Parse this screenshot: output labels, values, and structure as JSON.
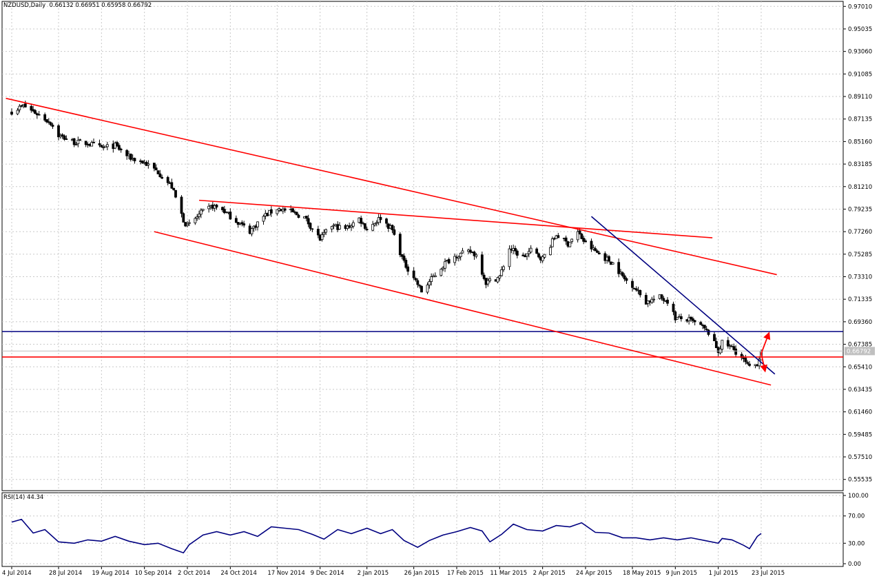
{
  "header": {
    "symbol_line": "NZDUSD,Daily  0.66132 0.66951 0.65958 0.66792",
    "rsi_line": "RSI(14) 44.34"
  },
  "colors": {
    "background": "#ffffff",
    "grid": "#c8c8c8",
    "candle": "#000000",
    "red_lines": "#ff0000",
    "blue_lines": "#000080",
    "rsi_line": "#000080",
    "price_tag": "#c0c0c0"
  },
  "chart_data": [
    {
      "type": "candlestick",
      "timeframe": "Daily",
      "grid": true,
      "ylim": [
        0.5455,
        0.9745
      ],
      "y_tick_labels": [
        "0.97010",
        "0.95035",
        "0.93060",
        "0.91085",
        "0.89110",
        "0.87135",
        "0.85160",
        "0.83185",
        "0.81210",
        "0.79235",
        "0.77260",
        "0.75285",
        "0.73310",
        "0.71335",
        "0.69360",
        "0.67385",
        "0.65410",
        "0.63435",
        "0.61460",
        "0.59485",
        "0.57510",
        "0.55535"
      ],
      "x_tick_labels": [
        "4 Jul 2014",
        "28 Jul 2014",
        "19 Aug 2014",
        "10 Sep 2014",
        "2 Oct 2014",
        "24 Oct 2014",
        "17 Nov 2014",
        "9 Dec 2014",
        "2 Jan 2015",
        "26 Jan 2015",
        "17 Feb 2015",
        "11 Mar 2015",
        "2 Apr 2015",
        "24 Apr 2015",
        "18 May 2015",
        "9 Jun 2015",
        "1 Jul 2015",
        "23 Jul 2015"
      ],
      "last_price_tag": "0.66792",
      "last_close": 0.66792,
      "close_path": [
        {
          "date": "2014-07-04",
          "close": 0.878
        },
        {
          "date": "2014-07-10",
          "close": 0.883
        },
        {
          "date": "2014-07-17",
          "close": 0.876
        },
        {
          "date": "2014-07-24",
          "close": 0.868
        },
        {
          "date": "2014-07-28",
          "close": 0.857
        },
        {
          "date": "2014-08-05",
          "close": 0.851
        },
        {
          "date": "2014-08-12",
          "close": 0.85
        },
        {
          "date": "2014-08-19",
          "close": 0.846
        },
        {
          "date": "2014-08-26",
          "close": 0.848
        },
        {
          "date": "2014-09-02",
          "close": 0.838
        },
        {
          "date": "2014-09-10",
          "close": 0.833
        },
        {
          "date": "2014-09-17",
          "close": 0.825
        },
        {
          "date": "2014-09-24",
          "close": 0.812
        },
        {
          "date": "2014-09-30",
          "close": 0.783
        },
        {
          "date": "2014-10-02",
          "close": 0.777
        },
        {
          "date": "2014-10-09",
          "close": 0.789
        },
        {
          "date": "2014-10-15",
          "close": 0.795
        },
        {
          "date": "2014-10-20",
          "close": 0.792
        },
        {
          "date": "2014-10-24",
          "close": 0.786
        },
        {
          "date": "2014-11-03",
          "close": 0.773
        },
        {
          "date": "2014-11-10",
          "close": 0.786
        },
        {
          "date": "2014-11-17",
          "close": 0.793
        },
        {
          "date": "2014-11-24",
          "close": 0.79
        },
        {
          "date": "2014-12-01",
          "close": 0.785
        },
        {
          "date": "2014-12-09",
          "close": 0.766
        },
        {
          "date": "2014-12-15",
          "close": 0.778
        },
        {
          "date": "2014-12-22",
          "close": 0.775
        },
        {
          "date": "2014-12-29",
          "close": 0.784
        },
        {
          "date": "2015-01-02",
          "close": 0.775
        },
        {
          "date": "2015-01-09",
          "close": 0.785
        },
        {
          "date": "2015-01-15",
          "close": 0.774
        },
        {
          "date": "2015-01-21",
          "close": 0.745
        },
        {
          "date": "2015-01-26",
          "close": 0.733
        },
        {
          "date": "2015-01-30",
          "close": 0.72
        },
        {
          "date": "2015-02-05",
          "close": 0.733
        },
        {
          "date": "2015-02-11",
          "close": 0.745
        },
        {
          "date": "2015-02-17",
          "close": 0.752
        },
        {
          "date": "2015-02-24",
          "close": 0.755
        },
        {
          "date": "2015-02-27",
          "close": 0.752
        },
        {
          "date": "2015-03-04",
          "close": 0.728
        },
        {
          "date": "2015-03-11",
          "close": 0.733
        },
        {
          "date": "2015-03-16",
          "close": 0.758
        },
        {
          "date": "2015-03-23",
          "close": 0.75
        },
        {
          "date": "2015-03-27",
          "close": 0.756
        },
        {
          "date": "2015-04-02",
          "close": 0.749
        },
        {
          "date": "2015-04-09",
          "close": 0.77
        },
        {
          "date": "2015-04-15",
          "close": 0.762
        },
        {
          "date": "2015-04-20",
          "close": 0.772
        },
        {
          "date": "2015-04-24",
          "close": 0.762
        },
        {
          "date": "2015-05-01",
          "close": 0.753
        },
        {
          "date": "2015-05-08",
          "close": 0.745
        },
        {
          "date": "2015-05-14",
          "close": 0.731
        },
        {
          "date": "2015-05-18",
          "close": 0.726
        },
        {
          "date": "2015-05-25",
          "close": 0.711
        },
        {
          "date": "2015-06-01",
          "close": 0.715
        },
        {
          "date": "2015-06-05",
          "close": 0.712
        },
        {
          "date": "2015-06-09",
          "close": 0.697
        },
        {
          "date": "2015-06-16",
          "close": 0.695
        },
        {
          "date": "2015-06-22",
          "close": 0.69
        },
        {
          "date": "2015-06-26",
          "close": 0.684
        },
        {
          "date": "2015-07-01",
          "close": 0.668
        },
        {
          "date": "2015-07-03",
          "close": 0.675
        },
        {
          "date": "2015-07-08",
          "close": 0.671
        },
        {
          "date": "2015-07-13",
          "close": 0.662
        },
        {
          "date": "2015-07-17",
          "close": 0.653
        },
        {
          "date": "2015-07-21",
          "close": 0.657
        },
        {
          "date": "2015-07-23",
          "close": 0.66792
        }
      ],
      "trendlines": [
        {
          "color": "red",
          "from": {
            "date": "2014-07-01",
            "price": 0.8895
          },
          "to": {
            "date": "2015-07-31",
            "price": 0.7349
          }
        },
        {
          "color": "red",
          "from": {
            "date": "2014-09-15",
            "price": 0.7726
          },
          "to": {
            "date": "2015-07-28",
            "price": 0.6381
          }
        },
        {
          "color": "red",
          "from": {
            "date": "2014-10-08",
            "price": 0.8001
          },
          "to": {
            "date": "2015-06-28",
            "price": 0.7672
          }
        },
        {
          "color": "blue",
          "from": {
            "date": "2015-04-27",
            "price": 0.7859
          },
          "to": {
            "date": "2015-07-30",
            "price": 0.6477
          }
        }
      ],
      "horizontal_lines": [
        {
          "color": "blue",
          "price": 0.685
        },
        {
          "color": "red",
          "price": 0.6627
        }
      ],
      "arrows": [
        {
          "color": "red",
          "direction": "up",
          "from": {
            "date": "2015-07-23",
            "price": 0.6657
          },
          "to": {
            "date": "2015-07-27",
            "price": 0.6838
          }
        },
        {
          "color": "red",
          "direction": "down",
          "from": {
            "date": "2015-07-23",
            "price": 0.6657
          },
          "to": {
            "date": "2015-07-25",
            "price": 0.6502
          }
        }
      ]
    },
    {
      "type": "line",
      "indicator": "RSI(14)",
      "value_label": "44.34",
      "ylim": [
        0,
        100
      ],
      "y_tick_labels": [
        "100.00",
        "70.00",
        "30.00",
        "0.00"
      ],
      "series": [
        {
          "values": [
            {
              "date": "2014-07-04",
              "value": 61
            },
            {
              "date": "2014-07-09",
              "value": 65
            },
            {
              "date": "2014-07-15",
              "value": 45
            },
            {
              "date": "2014-07-21",
              "value": 50
            },
            {
              "date": "2014-07-28",
              "value": 32
            },
            {
              "date": "2014-08-05",
              "value": 30
            },
            {
              "date": "2014-08-12",
              "value": 35
            },
            {
              "date": "2014-08-19",
              "value": 33
            },
            {
              "date": "2014-08-26",
              "value": 40
            },
            {
              "date": "2014-09-02",
              "value": 33
            },
            {
              "date": "2014-09-10",
              "value": 28
            },
            {
              "date": "2014-09-17",
              "value": 30
            },
            {
              "date": "2014-09-24",
              "value": 22
            },
            {
              "date": "2014-09-30",
              "value": 16
            },
            {
              "date": "2014-10-03",
              "value": 28
            },
            {
              "date": "2014-10-10",
              "value": 42
            },
            {
              "date": "2014-10-17",
              "value": 47
            },
            {
              "date": "2014-10-24",
              "value": 42
            },
            {
              "date": "2014-10-31",
              "value": 47
            },
            {
              "date": "2014-11-07",
              "value": 40
            },
            {
              "date": "2014-11-14",
              "value": 54
            },
            {
              "date": "2014-11-21",
              "value": 52
            },
            {
              "date": "2014-11-28",
              "value": 50
            },
            {
              "date": "2014-12-05",
              "value": 43
            },
            {
              "date": "2014-12-11",
              "value": 36
            },
            {
              "date": "2014-12-18",
              "value": 50
            },
            {
              "date": "2014-12-25",
              "value": 44
            },
            {
              "date": "2015-01-02",
              "value": 52
            },
            {
              "date": "2015-01-09",
              "value": 44
            },
            {
              "date": "2015-01-15",
              "value": 50
            },
            {
              "date": "2015-01-21",
              "value": 34
            },
            {
              "date": "2015-01-28",
              "value": 24
            },
            {
              "date": "2015-02-03",
              "value": 34
            },
            {
              "date": "2015-02-10",
              "value": 42
            },
            {
              "date": "2015-02-17",
              "value": 47
            },
            {
              "date": "2015-02-24",
              "value": 53
            },
            {
              "date": "2015-03-02",
              "value": 48
            },
            {
              "date": "2015-03-06",
              "value": 32
            },
            {
              "date": "2015-03-12",
              "value": 43
            },
            {
              "date": "2015-03-18",
              "value": 58
            },
            {
              "date": "2015-03-25",
              "value": 50
            },
            {
              "date": "2015-04-02",
              "value": 48
            },
            {
              "date": "2015-04-09",
              "value": 56
            },
            {
              "date": "2015-04-16",
              "value": 54
            },
            {
              "date": "2015-04-22",
              "value": 60
            },
            {
              "date": "2015-04-29",
              "value": 46
            },
            {
              "date": "2015-05-06",
              "value": 45
            },
            {
              "date": "2015-05-13",
              "value": 38
            },
            {
              "date": "2015-05-20",
              "value": 38
            },
            {
              "date": "2015-05-27",
              "value": 35
            },
            {
              "date": "2015-06-03",
              "value": 38
            },
            {
              "date": "2015-06-10",
              "value": 35
            },
            {
              "date": "2015-06-17",
              "value": 38
            },
            {
              "date": "2015-06-24",
              "value": 34
            },
            {
              "date": "2015-07-01",
              "value": 30
            },
            {
              "date": "2015-07-03",
              "value": 37
            },
            {
              "date": "2015-07-08",
              "value": 35
            },
            {
              "date": "2015-07-14",
              "value": 27
            },
            {
              "date": "2015-07-17",
              "value": 22
            },
            {
              "date": "2015-07-21",
              "value": 40
            },
            {
              "date": "2015-07-23",
              "value": 44.34
            }
          ]
        }
      ]
    }
  ]
}
